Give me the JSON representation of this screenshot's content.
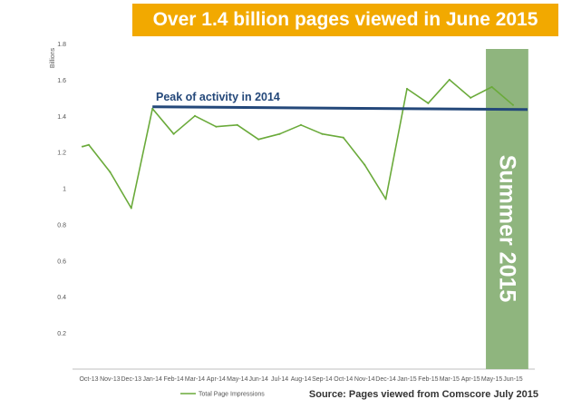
{
  "banner": {
    "text": "Over 1.4 billion pages viewed in June 2015",
    "color": "#f2a900"
  },
  "source": "Source: Pages viewed from Comscore July 2015",
  "chart_data": {
    "type": "line",
    "ylabel": "Billions",
    "ylim": [
      0,
      1.8
    ],
    "yticks": [
      "0.2",
      "0.4",
      "0.6",
      "0.8",
      "1",
      "1.2",
      "1.4",
      "1.6",
      "1.8"
    ],
    "grid": false,
    "legend_position": "bottom-left",
    "categories": [
      "Oct-13",
      "Nov-13",
      "Dec-13",
      "Jan-14",
      "Feb-14",
      "Mar-14",
      "Apr-14",
      "May-14",
      "Jun-14",
      "Jul-14",
      "Aug-14",
      "Sep-14",
      "Oct-14",
      "Nov-14",
      "Dec-14",
      "Jan-15",
      "Feb-15",
      "Mar-15",
      "Apr-15",
      "May-15",
      "Jun-15"
    ],
    "series": [
      {
        "name": "Total Page Impressions",
        "color": "#6aaa3a",
        "x": [
          -0.3,
          0,
          1,
          2,
          3,
          4,
          5,
          6,
          7,
          8,
          9,
          10,
          11,
          12,
          13,
          14,
          15,
          16,
          17,
          18,
          19,
          20
        ],
        "values": [
          1.23,
          1.24,
          1.09,
          0.89,
          1.44,
          1.3,
          1.4,
          1.34,
          1.35,
          1.27,
          1.3,
          1.35,
          1.3,
          1.28,
          1.13,
          0.94,
          1.55,
          1.47,
          1.6,
          1.5,
          1.56,
          1.46
        ]
      }
    ],
    "reference_line": {
      "label": "Peak of activity in 2014",
      "value": 1.44,
      "color": "#24487a"
    },
    "highlight": {
      "label": "Summer 2015",
      "x_from": 18.72,
      "x_to": 20.72,
      "color": "#8fb57e",
      "text_color": "#ffffff"
    }
  }
}
